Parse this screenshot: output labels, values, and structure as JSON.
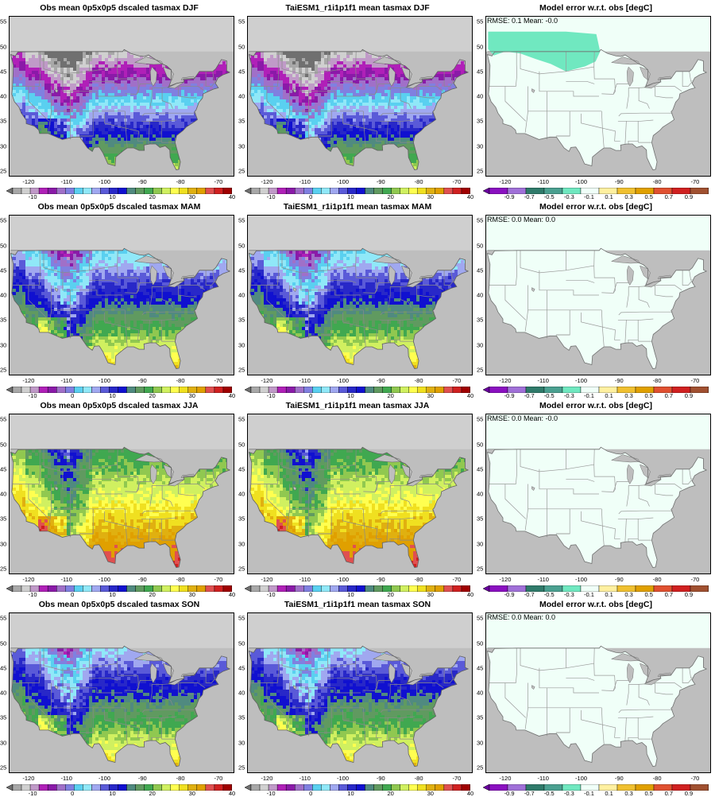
{
  "colorbars": {
    "temperature": {
      "labels": [
        "-10",
        "0",
        "10",
        "20",
        "30",
        "40"
      ],
      "colors": [
        "#a8a8a8",
        "#d0d0d0",
        "#c09ac8",
        "#b020b8",
        "#8a1aa8",
        "#a070c8",
        "#8080e0",
        "#5ad0f0",
        "#90e8f8",
        "#a0a8f0",
        "#5a5ad8",
        "#2828c8",
        "#1010d0",
        "#508a80",
        "#609a60",
        "#40a850",
        "#90c850",
        "#d0f060",
        "#ffff50",
        "#f0e020",
        "#e0b010",
        "#e0a000",
        "#e05050",
        "#d02020",
        "#a00000"
      ],
      "tri_colors": [
        "#707070",
        "#500000"
      ],
      "ticks": [
        -10,
        0,
        10,
        20,
        30,
        40
      ],
      "range": [
        -15,
        40
      ]
    },
    "error": {
      "labels": [
        "-0.9",
        "-0.7",
        "-0.5",
        "-0.3",
        "-0.1",
        "0.1",
        "0.3",
        "0.5",
        "0.7",
        "0.9"
      ],
      "colors": [
        "#8a10c0",
        "#a070d8",
        "#2f7a6a",
        "#4aa090",
        "#70e8c0",
        "#f0fff8",
        "#fff0a0",
        "#f0c030",
        "#e0a000",
        "#e05030",
        "#d02020",
        "#a05030"
      ],
      "tri_colors": [
        "#6a00a0",
        "#7a4020"
      ],
      "ticks": [
        -0.9,
        -0.7,
        -0.5,
        -0.3,
        -0.1,
        0.1,
        0.3,
        0.5,
        0.7,
        0.9
      ],
      "range": [
        -1.1,
        1.1
      ]
    }
  },
  "map_axes": {
    "lon_ticks": [
      -120,
      -110,
      -100,
      -90,
      -80,
      -70
    ],
    "lon_labels": [
      "-120",
      "-110",
      "-100",
      "-90",
      "-80",
      "-70"
    ],
    "lat_ticks": [
      25,
      30,
      35,
      40,
      45,
      50,
      55
    ],
    "lat_labels": [
      "25",
      "30",
      "35",
      "40",
      "45",
      "50",
      "55"
    ],
    "lon_range": [
      -125,
      -66
    ],
    "lat_range": [
      24,
      56
    ]
  },
  "rows": [
    {
      "obs_title": "Obs mean 0p5x0p5 dscaled tasmax DJF",
      "model_title": "TaiESM1_r1i1p1f1 mean tasmax DJF",
      "error_title": "Model error w.r.t. obs [degC]",
      "stats": "RMSE:  0.1   Mean:  -0.0",
      "season": "DJF",
      "error_patch": true
    },
    {
      "obs_title": "Obs mean 0p5x0p5 dscaled tasmax MAM",
      "model_title": "TaiESM1_r1i1p1f1 mean tasmax MAM",
      "error_title": "Model error w.r.t. obs [degC]",
      "stats": "RMSE:  0.0   Mean:  0.0",
      "season": "MAM",
      "error_patch": false
    },
    {
      "obs_title": "Obs mean 0p5x0p5 dscaled tasmax JJA",
      "model_title": "TaiESM1_r1i1p1f1 mean tasmax JJA",
      "error_title": "Model error w.r.t. obs [degC]",
      "stats": "RMSE:  0.0   Mean:  -0.0",
      "season": "JJA",
      "error_patch": false
    },
    {
      "obs_title": "Obs mean 0p5x0p5 dscaled tasmax SON",
      "model_title": "TaiESM1_r1i1p1f1 mean tasmax SON",
      "error_title": "Model error w.r.t. obs [degC]",
      "stats": "RMSE:  0.0   Mean:  0.0",
      "season": "SON",
      "error_patch": false
    }
  ]
}
